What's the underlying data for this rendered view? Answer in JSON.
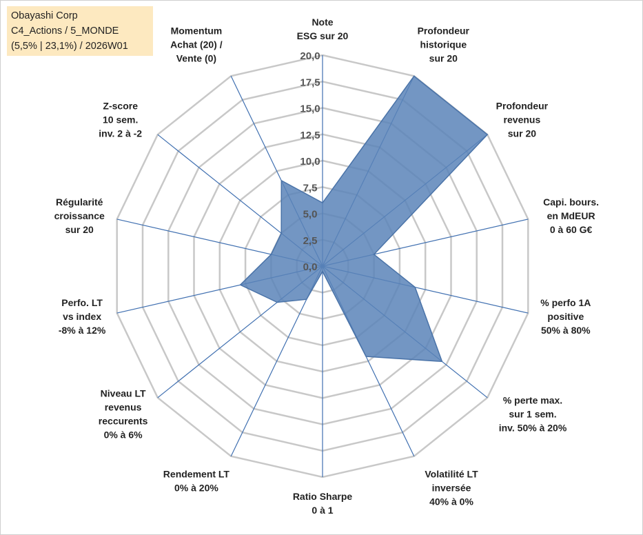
{
  "info": {
    "line1": "Obayashi Corp",
    "line2": "C4_Actions / 5_MONDE",
    "line3": "(5,5% | 23,1%) / 2026W01"
  },
  "colors": {
    "fill": "#5b84b8",
    "stroke": "#4a73a8",
    "grid": "#c8c8c8",
    "spoke": "#3f6fb0"
  },
  "chart_data": {
    "type": "radar",
    "range": [
      0,
      20
    ],
    "grid": true,
    "ticks": [
      "0,0",
      "2,5",
      "5,0",
      "7,5",
      "10,0",
      "12,5",
      "15,0",
      "17,5",
      "20,0"
    ],
    "tick_values": [
      0,
      2.5,
      5,
      7.5,
      10,
      12.5,
      15,
      17.5,
      20
    ],
    "axes": [
      {
        "label": [
          "Note",
          "ESG sur 20"
        ],
        "value": 6
      },
      {
        "label": [
          "Profondeur",
          "historique",
          "sur 20"
        ],
        "value": 20
      },
      {
        "label": [
          "Profondeur",
          "revenus",
          "sur 20"
        ],
        "value": 20
      },
      {
        "label": [
          "Capi. bours.",
          "en MdEUR",
          "0 à 60 G€"
        ],
        "value": 5
      },
      {
        "label": [
          "% perfo 1A",
          "positive",
          "50% à 80%"
        ],
        "value": 9
      },
      {
        "label": [
          "% perte max.",
          "sur 1 sem.",
          "inv. 50% à 20%"
        ],
        "value": 14.5
      },
      {
        "label": [
          "Volatilité LT",
          "inversée",
          "40% à 0%"
        ],
        "value": 9.5
      },
      {
        "label": [
          "Ratio Sharpe",
          "0 à 1"
        ],
        "value": 0.5
      },
      {
        "label": [
          "Rendement LT",
          "0% à 20%"
        ],
        "value": 3.5
      },
      {
        "label": [
          "Niveau LT",
          "revenus",
          "reccurents",
          "0% à 6%"
        ],
        "value": 5.5
      },
      {
        "label": [
          "Perfo. LT",
          "vs index",
          "-8% à 12%"
        ],
        "value": 8
      },
      {
        "label": [
          "Régularité",
          "croissance",
          "sur 20"
        ],
        "value": 5
      },
      {
        "label": [
          "Z-score",
          "10 sem.",
          "inv. 2 à -2"
        ],
        "value": 5
      },
      {
        "label": [
          "Momentum",
          "Achat (20) /",
          "Vente (0)"
        ],
        "value": 9
      }
    ]
  }
}
